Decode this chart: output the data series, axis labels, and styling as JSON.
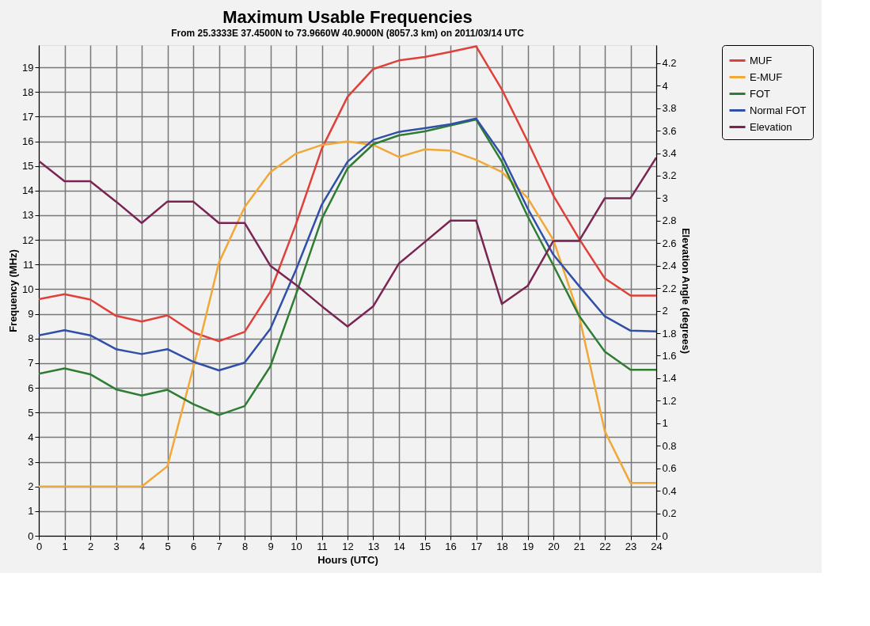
{
  "chart_data": {
    "type": "line",
    "title": "Maximum Usable Frequencies",
    "subtitle": "From  25.3333E 37.4500N to  73.9660W 40.9000N (8057.3 km) on 2011/03/14 UTC",
    "xlabel": "Hours (UTC)",
    "ylabel": "Frequency (MHz)",
    "y2label": "Elevation Angle (degrees)",
    "x": [
      0,
      1,
      2,
      3,
      4,
      5,
      6,
      7,
      8,
      9,
      10,
      11,
      12,
      13,
      14,
      15,
      16,
      17,
      18,
      19,
      20,
      21,
      22,
      23,
      24
    ],
    "series": [
      {
        "name": "MUF",
        "color": "#e0403a",
        "values": [
          9.6,
          9.8,
          9.58,
          8.92,
          8.69,
          8.94,
          8.25,
          7.89,
          8.27,
          9.9,
          12.65,
          15.7,
          17.8,
          18.93,
          19.28,
          19.42,
          19.63,
          19.85,
          18.1,
          16.0,
          13.8,
          12.05,
          10.44,
          9.74,
          9.74
        ]
      },
      {
        "name": "E-MUF",
        "color": "#f0a838",
        "values": [
          2.0,
          2.0,
          2.0,
          2.0,
          2.0,
          2.82,
          6.8,
          11.07,
          13.33,
          14.75,
          15.5,
          15.85,
          15.99,
          15.85,
          15.36,
          15.67,
          15.62,
          15.25,
          14.75,
          13.7,
          12.0,
          8.92,
          4.24,
          2.14,
          2.14
        ]
      },
      {
        "name": "FOT",
        "color": "#2e7d32",
        "values": [
          6.57,
          6.79,
          6.55,
          5.94,
          5.69,
          5.92,
          5.34,
          4.9,
          5.26,
          6.87,
          9.8,
          12.86,
          14.9,
          15.88,
          16.24,
          16.4,
          16.64,
          16.88,
          15.17,
          12.96,
          10.97,
          8.92,
          7.47,
          6.73,
          6.73
        ]
      },
      {
        "name": "Normal FOT",
        "color": "#3050a8",
        "values": [
          8.13,
          8.34,
          8.13,
          7.57,
          7.37,
          7.57,
          7.06,
          6.71,
          7.02,
          8.39,
          10.8,
          13.43,
          15.17,
          16.06,
          16.38,
          16.53,
          16.69,
          16.92,
          15.43,
          13.28,
          11.4,
          10.13,
          8.9,
          8.32,
          8.29
        ]
      },
      {
        "name": "Elevation",
        "color": "#7a2452",
        "axis": "y2",
        "values": [
          3.33,
          3.15,
          3.15,
          2.97,
          2.78,
          2.97,
          2.97,
          2.78,
          2.78,
          2.4,
          2.23,
          2.04,
          1.86,
          2.04,
          2.42,
          2.61,
          2.8,
          2.8,
          2.06,
          2.22,
          2.62,
          2.62,
          3.0,
          3.0,
          3.36
        ]
      }
    ],
    "xlim": [
      0,
      24
    ],
    "xticks": [
      0,
      1,
      2,
      3,
      4,
      5,
      6,
      7,
      8,
      9,
      10,
      11,
      12,
      13,
      14,
      15,
      16,
      17,
      18,
      19,
      20,
      21,
      22,
      23,
      24
    ],
    "ylim": [
      0,
      19.9
    ],
    "yticks": [
      0,
      1,
      2,
      3,
      4,
      5,
      6,
      7,
      8,
      9,
      10,
      11,
      12,
      13,
      14,
      15,
      16,
      17,
      18,
      19
    ],
    "y2lim": [
      0,
      4.36
    ],
    "y2ticks": [
      0,
      0.2,
      0.4,
      0.6,
      0.8,
      1,
      1.2,
      1.4,
      1.6,
      1.8,
      2,
      2.2,
      2.4,
      2.6,
      2.8,
      3,
      3.2,
      3.4,
      3.6,
      3.8,
      4,
      4.2
    ],
    "grid": true,
    "legend": "top right"
  }
}
